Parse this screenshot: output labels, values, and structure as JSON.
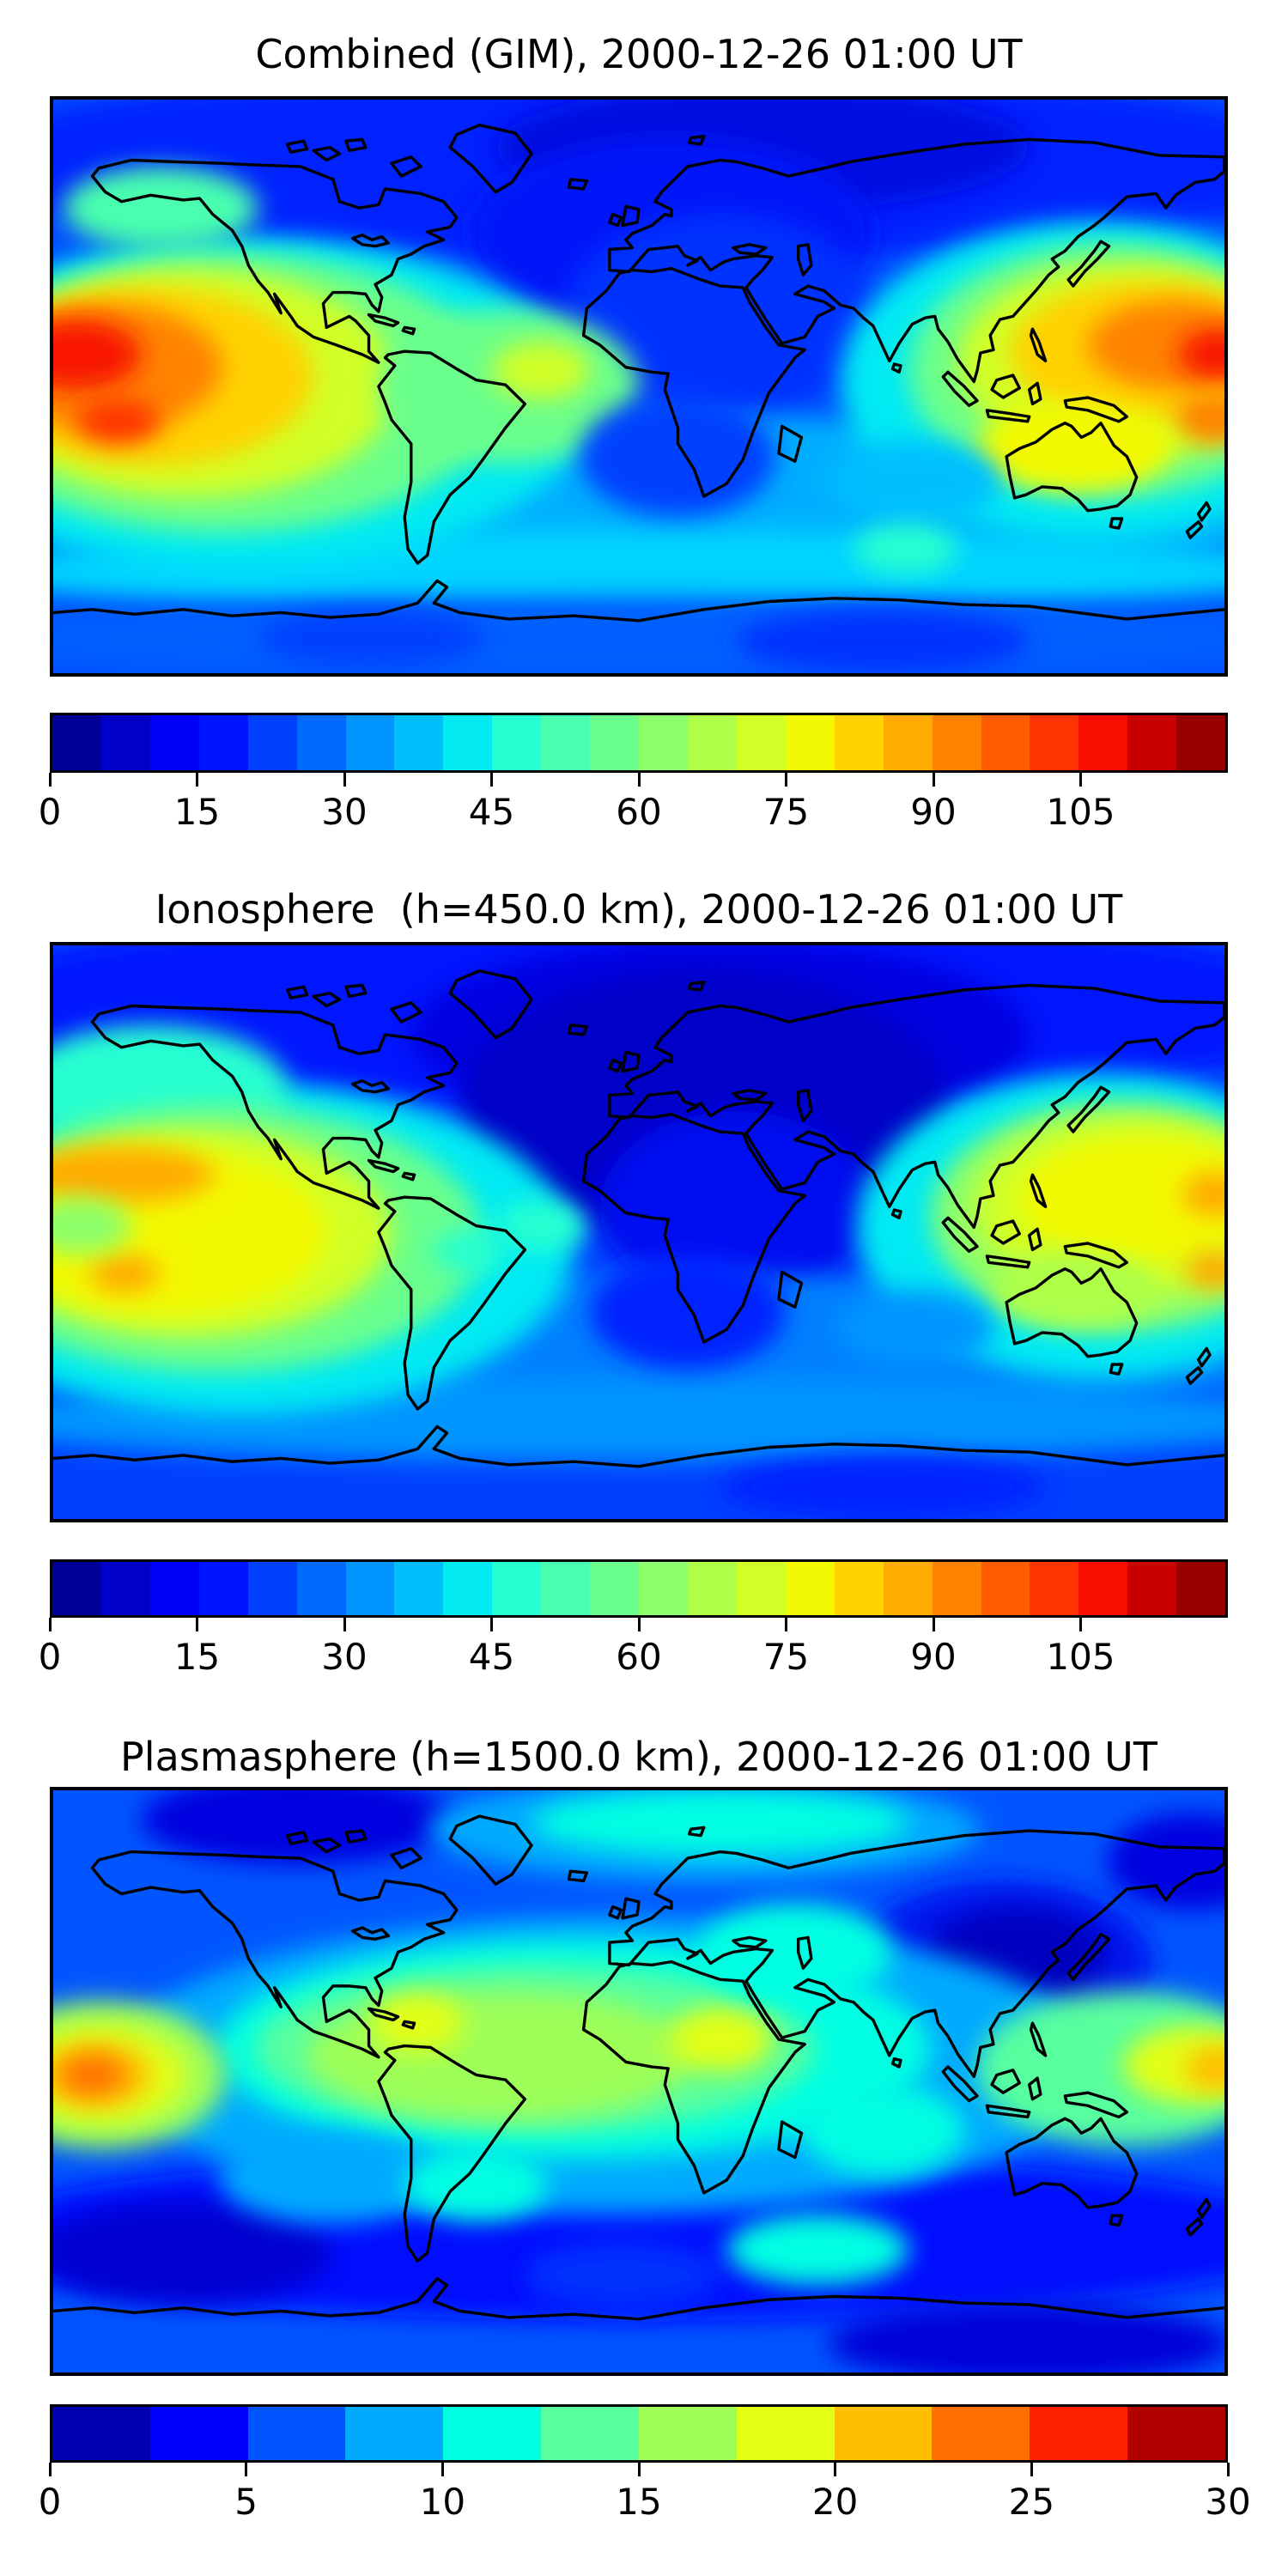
{
  "page": {
    "background": "#ffffff",
    "text_color": "#000000"
  },
  "chart_data": [
    {
      "type": "heatmap",
      "title": "Combined (GIM), 2000-12-26 01:00 UT",
      "colorbar": {
        "vmin": 0,
        "vmax": 120,
        "tick_labels": [
          "0",
          "15",
          "30",
          "45",
          "60",
          "75",
          "90",
          "105"
        ],
        "colors": [
          "#000098",
          "#0000C8",
          "#0000F8",
          "#0015FF",
          "#0040FF",
          "#006AFF",
          "#0095FF",
          "#00BFFF",
          "#03EAF3",
          "#26FFD1",
          "#48FFAF",
          "#6AFF8C",
          "#8DFF6A",
          "#AFFF48",
          "#D1FF26",
          "#F3F903",
          "#FFD200",
          "#FFAB00",
          "#FF8300",
          "#FF5C00",
          "#FF3500",
          "#F80D00",
          "#C80000",
          "#980000"
        ]
      },
      "field": {
        "base": "#0050FF",
        "blobs": [
          [
            180,
            20,
            215,
            30,
            "#0022FF"
          ],
          [
            218,
            15,
            82,
            20,
            "#000AE0"
          ],
          [
            190,
            42,
            62,
            30,
            "#0018F8"
          ],
          [
            205,
            68,
            48,
            32,
            "#0033FF"
          ],
          [
            180,
            127,
            210,
            28,
            "#00AEFF"
          ],
          [
            180,
            148,
            210,
            13,
            "#00D4FF"
          ],
          [
            180,
            169,
            210,
            13,
            "#0060FF"
          ],
          [
            255,
            170,
            45,
            10,
            "#0033FF"
          ],
          [
            98,
            169,
            35,
            9,
            "#0040FF"
          ],
          [
            60,
            95,
            105,
            52,
            "#03EAF3"
          ],
          [
            33,
            34,
            30,
            13,
            "#48FFAF"
          ],
          [
            52,
            92,
            85,
            44,
            "#6AFF8C"
          ],
          [
            42,
            89,
            64,
            36,
            "#D1FF26"
          ],
          [
            30,
            87,
            50,
            28,
            "#FFD200"
          ],
          [
            16,
            84,
            36,
            20,
            "#FF8300"
          ],
          [
            7,
            80,
            20,
            11,
            "#F81500"
          ],
          [
            20,
            101,
            13,
            7,
            "#FF3500"
          ],
          [
            140,
            90,
            40,
            24,
            "#6AFF8C"
          ],
          [
            150,
            85,
            15,
            9,
            "#D1FF26"
          ],
          [
            320,
            88,
            78,
            50,
            "#03EAF3"
          ],
          [
            325,
            85,
            62,
            40,
            "#6AFF8C"
          ],
          [
            330,
            82,
            52,
            31,
            "#D1FF26"
          ],
          [
            336,
            79,
            42,
            22,
            "#FFD200"
          ],
          [
            345,
            77,
            27,
            14,
            "#FF8300"
          ],
          [
            358,
            80,
            12,
            8,
            "#F81500"
          ],
          [
            357,
            100,
            12,
            8,
            "#FF8300"
          ],
          [
            314,
            109,
            30,
            14,
            "#F3F903"
          ],
          [
            265,
            120,
            26,
            13,
            "#00BFFF"
          ],
          [
            192,
            112,
            30,
            19,
            "#0040FF"
          ],
          [
            262,
            141,
            16,
            8,
            "#26FFD1"
          ]
        ]
      }
    },
    {
      "type": "heatmap",
      "title": "Ionosphere  (h=450.0 km), 2000-12-26 01:00 UT",
      "colorbar": {
        "vmin": 0,
        "vmax": 120,
        "tick_labels": [
          "0",
          "15",
          "30",
          "45",
          "60",
          "75",
          "90",
          "105"
        ],
        "colors": [
          "#000098",
          "#0000C8",
          "#0000F8",
          "#0015FF",
          "#0040FF",
          "#006AFF",
          "#0095FF",
          "#00BFFF",
          "#03EAF3",
          "#26FFD1",
          "#48FFAF",
          "#6AFF8C",
          "#8DFF6A",
          "#AFFF48",
          "#D1FF26",
          "#F3F903",
          "#FFD200",
          "#FFAB00",
          "#FF8300",
          "#FF5C00",
          "#FF3500",
          "#F80D00",
          "#C80000",
          "#980000"
        ]
      },
      "field": {
        "base": "#0040FF",
        "blobs": [
          [
            180,
            20,
            215,
            32,
            "#0015FF"
          ],
          [
            205,
            28,
            95,
            30,
            "#0000E0"
          ],
          [
            200,
            50,
            75,
            42,
            "#0000C8"
          ],
          [
            210,
            82,
            42,
            30,
            "#0008F0"
          ],
          [
            180,
            127,
            210,
            24,
            "#0080FF"
          ],
          [
            180,
            149,
            210,
            13,
            "#0095FF"
          ],
          [
            255,
            170,
            50,
            10,
            "#0020FF"
          ],
          [
            58,
            95,
            102,
            52,
            "#03EAF3"
          ],
          [
            30,
            45,
            42,
            20,
            "#26FFD1"
          ],
          [
            50,
            92,
            82,
            42,
            "#6AFF8C"
          ],
          [
            42,
            90,
            62,
            33,
            "#D1FF26"
          ],
          [
            34,
            90,
            50,
            26,
            "#F3F903"
          ],
          [
            20,
            72,
            30,
            9,
            "#FFAB00"
          ],
          [
            22,
            103,
            11,
            6,
            "#FFAB00"
          ],
          [
            8,
            88,
            16,
            9,
            "#8DFF6A"
          ],
          [
            150,
            88,
            14,
            8,
            "#26FFD1"
          ],
          [
            128,
            96,
            11,
            7,
            "#26FFD1"
          ],
          [
            322,
            88,
            75,
            48,
            "#03EAF3"
          ],
          [
            328,
            85,
            58,
            36,
            "#8DFF6A"
          ],
          [
            331,
            82,
            48,
            28,
            "#D1FF26"
          ],
          [
            335,
            80,
            38,
            20,
            "#F3F903"
          ],
          [
            357,
            78,
            10,
            7,
            "#FFAB00"
          ],
          [
            357,
            102,
            9,
            6,
            "#FFAB00"
          ],
          [
            314,
            108,
            26,
            12,
            "#AFFF48"
          ],
          [
            265,
            120,
            24,
            12,
            "#0095FF"
          ],
          [
            195,
            115,
            30,
            18,
            "#0020FF"
          ]
        ]
      }
    },
    {
      "type": "heatmap",
      "title": "Plasmasphere (h=1500.0 km), 2000-12-26 01:00 UT",
      "colorbar": {
        "vmin": 0,
        "vmax": 30,
        "tick_labels": [
          "0",
          "5",
          "10",
          "15",
          "20",
          "25",
          "30"
        ],
        "colors": [
          "#0000B0",
          "#0000FF",
          "#0055FF",
          "#00AAFF",
          "#00FFE2",
          "#59FF9E",
          "#9EFF59",
          "#E2FF15",
          "#FFBE00",
          "#FF7000",
          "#FF2100",
          "#B00000"
        ]
      },
      "field": {
        "base": "#0055FF",
        "blobs": [
          [
            180,
            138,
            210,
            26,
            "#0010FF"
          ],
          [
            75,
            9,
            48,
            14,
            "#0000E0"
          ],
          [
            350,
            22,
            26,
            15,
            "#0000E0"
          ],
          [
            292,
            54,
            46,
            26,
            "#0018F0"
          ],
          [
            296,
            51,
            28,
            15,
            "#0000C0"
          ],
          [
            40,
            143,
            46,
            16,
            "#0000D0"
          ],
          [
            300,
            171,
            62,
            12,
            "#0000D8"
          ],
          [
            175,
            150,
            30,
            10,
            "#0030FF"
          ],
          [
            200,
            12,
            85,
            16,
            "#00AAFF"
          ],
          [
            205,
            10,
            58,
            10,
            "#00FFE2"
          ],
          [
            170,
            85,
            152,
            46,
            "#00AAFF"
          ],
          [
            160,
            80,
            110,
            34,
            "#00FFE2"
          ],
          [
            148,
            80,
            86,
            26,
            "#59FF9E"
          ],
          [
            138,
            82,
            60,
            20,
            "#9EFF59"
          ],
          [
            112,
            72,
            14,
            9,
            "#E2FF15"
          ],
          [
            205,
            77,
            16,
            10,
            "#E2FF15"
          ],
          [
            228,
            50,
            30,
            15,
            "#00FFE2"
          ],
          [
            330,
            86,
            46,
            24,
            "#59FF9E"
          ],
          [
            350,
            85,
            21,
            12,
            "#E2FF15"
          ],
          [
            358,
            86,
            10,
            7,
            "#FFBE00"
          ],
          [
            15,
            88,
            38,
            23,
            "#9EFF59"
          ],
          [
            15,
            88,
            26,
            15,
            "#E2FF15"
          ],
          [
            13,
            88,
            17,
            10,
            "#FFBE00"
          ],
          [
            12,
            88,
            10,
            6,
            "#FF7000"
          ],
          [
            255,
            105,
            25,
            14,
            "#00FFE2"
          ],
          [
            235,
            142,
            28,
            11,
            "#00FFE2"
          ],
          [
            85,
            120,
            34,
            14,
            "#00AAFF"
          ],
          [
            130,
            122,
            22,
            11,
            "#00FFE2"
          ]
        ]
      }
    }
  ]
}
